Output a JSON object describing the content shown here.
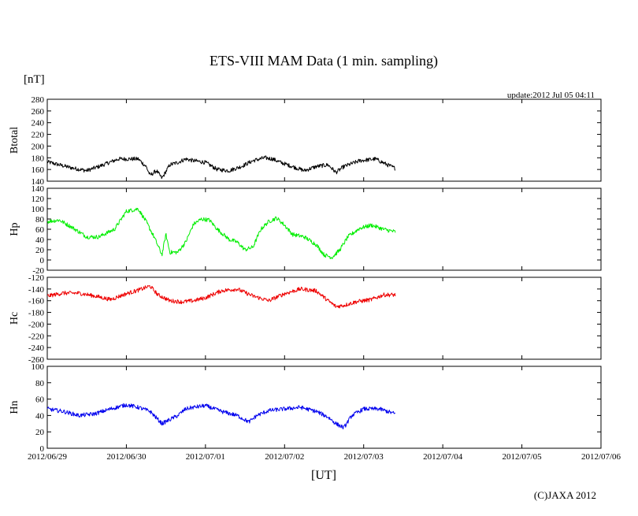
{
  "chart": {
    "title": "ETS-VIII MAM Data (1 min. sampling)",
    "unit_label": "[nT]",
    "update_text": "update:2012 Jul 05 04:11",
    "x_axis_label": "[UT]",
    "copyright": "(C)JAXA 2012"
  },
  "chart_data": {
    "type": "line",
    "title": "ETS-VIII MAM Data (1 min. sampling)",
    "xlabel": "[UT]",
    "ylabel": "[nT]",
    "x_ticks": [
      "2012/06/29",
      "2012/06/30",
      "2012/07/01",
      "2012/07/02",
      "2012/07/03",
      "2012/07/04",
      "2012/07/05",
      "2012/07/06"
    ],
    "x_range_days": [
      0,
      7
    ],
    "grid": false,
    "panels": [
      {
        "name": "Btotal",
        "color": "#000000",
        "ylim": [
          140,
          280
        ],
        "yticks": [
          140,
          160,
          180,
          200,
          220,
          240,
          260,
          280
        ],
        "x": [
          0,
          0.15,
          0.3,
          0.5,
          0.65,
          0.9,
          1.15,
          1.25,
          1.3,
          1.38,
          1.45,
          1.55,
          1.65,
          1.75,
          1.85,
          2.0,
          2.15,
          2.3,
          2.45,
          2.6,
          2.75,
          2.85,
          2.95,
          3.1,
          3.25,
          3.4,
          3.55,
          3.65,
          3.75,
          3.95,
          4.15,
          4.3,
          4.4
        ],
        "y": [
          173,
          168,
          163,
          158,
          165,
          178,
          178,
          165,
          150,
          158,
          145,
          168,
          172,
          178,
          175,
          172,
          160,
          158,
          165,
          175,
          180,
          178,
          172,
          165,
          158,
          165,
          168,
          155,
          165,
          175,
          178,
          168,
          162
        ],
        "noise": 3.5
      },
      {
        "name": "Hp",
        "color": "#00ee00",
        "ylim": [
          -20,
          140
        ],
        "yticks": [
          -20,
          0,
          20,
          40,
          60,
          80,
          100,
          120,
          140
        ],
        "x": [
          0,
          0.15,
          0.3,
          0.5,
          0.65,
          0.85,
          1.0,
          1.15,
          1.25,
          1.35,
          1.45,
          1.5,
          1.55,
          1.65,
          1.75,
          1.85,
          1.95,
          2.05,
          2.15,
          2.3,
          2.4,
          2.5,
          2.6,
          2.7,
          2.8,
          2.9,
          3.0,
          3.1,
          3.25,
          3.4,
          3.5,
          3.6,
          3.7,
          3.8,
          3.95,
          4.1,
          4.25,
          4.4
        ],
        "y": [
          75,
          78,
          65,
          45,
          45,
          60,
          95,
          100,
          75,
          45,
          10,
          50,
          15,
          15,
          35,
          70,
          80,
          78,
          60,
          40,
          35,
          20,
          25,
          60,
          75,
          82,
          68,
          50,
          45,
          30,
          10,
          5,
          20,
          45,
          62,
          68,
          60,
          55
        ],
        "noise": 4
      },
      {
        "name": "Hc",
        "color": "#ee0000",
        "ylim": [
          -260,
          -120
        ],
        "yticks": [
          -260,
          -240,
          -220,
          -200,
          -180,
          -160,
          -140,
          -120
        ],
        "x": [
          0,
          0.2,
          0.4,
          0.6,
          0.8,
          1.0,
          1.15,
          1.3,
          1.4,
          1.55,
          1.7,
          1.85,
          2.0,
          2.2,
          2.4,
          2.6,
          2.8,
          3.0,
          3.2,
          3.4,
          3.55,
          3.65,
          3.75,
          3.9,
          4.1,
          4.25,
          4.4
        ],
        "y": [
          -152,
          -147,
          -147,
          -152,
          -158,
          -148,
          -142,
          -135,
          -150,
          -160,
          -162,
          -160,
          -155,
          -143,
          -140,
          -152,
          -160,
          -148,
          -140,
          -143,
          -160,
          -170,
          -168,
          -162,
          -158,
          -150,
          -150
        ],
        "noise": 3.5
      },
      {
        "name": "Hn",
        "color": "#0000ee",
        "ylim": [
          0,
          100
        ],
        "yticks": [
          0,
          20,
          40,
          60,
          80,
          100
        ],
        "x": [
          0,
          0.2,
          0.4,
          0.6,
          0.8,
          1.0,
          1.15,
          1.3,
          1.45,
          1.55,
          1.65,
          1.75,
          1.85,
          2.0,
          2.2,
          2.4,
          2.55,
          2.65,
          2.8,
          3.0,
          3.2,
          3.4,
          3.55,
          3.65,
          3.75,
          3.85,
          4.0,
          4.2,
          4.4
        ],
        "y": [
          48,
          45,
          40,
          42,
          48,
          53,
          50,
          45,
          30,
          35,
          40,
          48,
          50,
          52,
          45,
          40,
          32,
          40,
          46,
          48,
          50,
          45,
          38,
          30,
          25,
          40,
          48,
          48,
          42
        ],
        "noise": 2.5
      }
    ]
  }
}
